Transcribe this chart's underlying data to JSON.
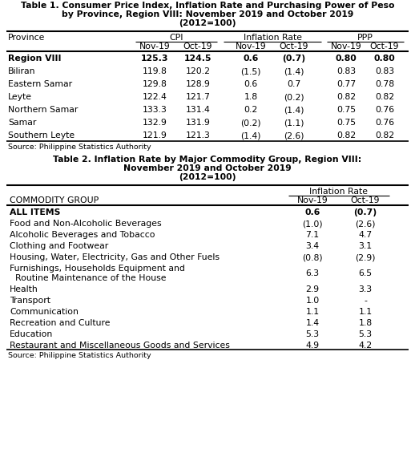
{
  "table1_title_lines": [
    "Table 1. Consumer Price Index, Inflation Rate and Purchasing Power of Peso",
    "by Province, Region VIII: November 2019 and October 2019",
    "(2012=100)"
  ],
  "table1_rows": [
    [
      "Region VIII",
      "125.3",
      "124.5",
      "0.6",
      "(0.7)",
      "0.80",
      "0.80",
      true
    ],
    [
      "Biliran",
      "119.8",
      "120.2",
      "(1.5)",
      "(1.4)",
      "0.83",
      "0.83",
      false
    ],
    [
      "Eastern Samar",
      "129.8",
      "128.9",
      "0.6",
      "0.7",
      "0.77",
      "0.78",
      false
    ],
    [
      "Leyte",
      "122.4",
      "121.7",
      "1.8",
      "(0.2)",
      "0.82",
      "0.82",
      false
    ],
    [
      "Northern Samar",
      "133.3",
      "131.4",
      "0.2",
      "(1.4)",
      "0.75",
      "0.76",
      false
    ],
    [
      "Samar",
      "132.9",
      "131.9",
      "(0.2)",
      "(1.1)",
      "0.75",
      "0.76",
      false
    ],
    [
      "Southern Leyte",
      "121.9",
      "121.3",
      "(1.4)",
      "(2.6)",
      "0.82",
      "0.82",
      false
    ]
  ],
  "table1_source": "Source: Philippine Statistics Authority",
  "table2_title_lines": [
    "Table 2. Inflation Rate by Major Commodity Group, Region VIII:",
    "November 2019 and October 2019",
    "(2012=100)"
  ],
  "table2_rows": [
    [
      "ALL ITEMS",
      "0.6",
      "(0.7)",
      true,
      false
    ],
    [
      "Food and Non-Alcoholic Beverages",
      "(1.0)",
      "(2.6)",
      false,
      false
    ],
    [
      "Alcoholic Beverages and Tobacco",
      "7.1",
      "4.7",
      false,
      false
    ],
    [
      "Clothing and Footwear",
      "3.4",
      "3.1",
      false,
      false
    ],
    [
      "Housing, Water, Electricity, Gas and Other Fuels",
      "(0.8)",
      "(2.9)",
      false,
      false
    ],
    [
      "Furnishings, Households Equipment and",
      "6.3",
      "6.5",
      false,
      true
    ],
    [
      "Health",
      "2.9",
      "3.3",
      false,
      false
    ],
    [
      "Transport",
      "1.0",
      "-",
      false,
      false
    ],
    [
      "Communication",
      "1.1",
      "1.1",
      false,
      false
    ],
    [
      "Recreation and Culture",
      "1.4",
      "1.8",
      false,
      false
    ],
    [
      "Education",
      "5.3",
      "5.3",
      false,
      false
    ],
    [
      "Restaurant and Miscellaneous Goods and Services",
      "4.9",
      "4.2",
      false,
      false
    ]
  ],
  "table2_source": "Source: Philippine Statistics Authority",
  "furnishing_line2": "  Routine Maintenance of the House",
  "bg_color": "#ffffff",
  "title_fontsize": 7.8,
  "header_fontsize": 7.8,
  "cell_fontsize": 7.8,
  "source_fontsize": 6.8
}
